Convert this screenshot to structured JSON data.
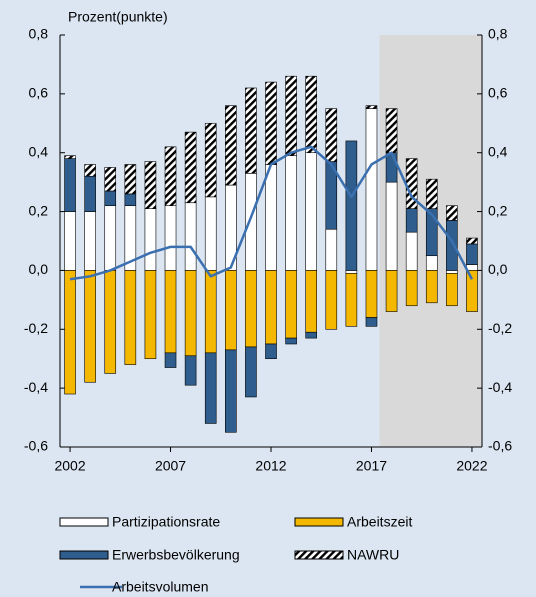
{
  "chart_data": {
    "type": "stacked-bar-line",
    "y_axis_label": "Prozent(punkte)",
    "categories": [
      2002,
      null,
      null,
      null,
      null,
      2007,
      null,
      null,
      null,
      null,
      2012,
      null,
      null,
      null,
      null,
      2017,
      null,
      null,
      null,
      null,
      2022
    ],
    "series": [
      {
        "name": "Partizipationsrate",
        "color": "#ffffff",
        "values": [
          0.2,
          0.2,
          0.22,
          0.22,
          0.21,
          0.22,
          0.23,
          0.25,
          0.29,
          0.33,
          0.36,
          0.39,
          0.4,
          0.14,
          -0.01,
          0.55,
          0.3,
          0.13,
          0.05,
          -0.01,
          0.02
        ]
      },
      {
        "name": "Arbeitszeit",
        "color": "#f5b800",
        "values": [
          -0.42,
          -0.38,
          -0.35,
          -0.32,
          -0.3,
          -0.28,
          -0.29,
          -0.28,
          -0.27,
          -0.26,
          -0.25,
          -0.23,
          -0.21,
          -0.2,
          -0.18,
          -0.16,
          -0.14,
          -0.12,
          -0.11,
          -0.11,
          -0.14
        ]
      },
      {
        "name": "Erwerbsbevölkerung",
        "color": "#2e5d8e",
        "values": [
          0.18,
          0.12,
          0.05,
          0.04,
          0.0,
          -0.05,
          -0.1,
          -0.24,
          -0.28,
          -0.17,
          -0.05,
          -0.02,
          -0.02,
          0.23,
          0.44,
          -0.03,
          0.1,
          0.08,
          0.16,
          0.17,
          0.07
        ]
      },
      {
        "name": "NAWRU",
        "color": "#000000",
        "pattern": "hatch",
        "values": [
          0.01,
          0.04,
          0.08,
          0.1,
          0.16,
          0.2,
          0.24,
          0.25,
          0.27,
          0.29,
          0.28,
          0.27,
          0.26,
          0.18,
          0.0,
          0.01,
          0.15,
          0.17,
          0.1,
          0.05,
          0.02
        ]
      },
      {
        "name": "Arbeitsvolumen",
        "type": "line",
        "color": "#3a6fb0",
        "values": [
          -0.03,
          -0.02,
          0.0,
          0.03,
          0.06,
          0.08,
          0.08,
          -0.02,
          0.01,
          0.18,
          0.36,
          0.4,
          0.42,
          0.36,
          0.25,
          0.36,
          0.4,
          0.25,
          0.19,
          0.1,
          -0.03
        ]
      }
    ],
    "shade_start_index": 16,
    "ylim": [
      -0.6,
      0.8
    ],
    "yticks": [
      {
        "value": -0.6,
        "label": "-0,6"
      },
      {
        "value": -0.4,
        "label": "-0,4"
      },
      {
        "value": -0.2,
        "label": "-0,2"
      },
      {
        "value": 0,
        "label": "0,0"
      },
      {
        "value": 0.2,
        "label": "0,2"
      },
      {
        "value": 0.4,
        "label": "0,4"
      },
      {
        "value": 0.6,
        "label": "0,6"
      },
      {
        "value": 0.8,
        "label": "0,8"
      }
    ],
    "y2lim": [
      -0.6,
      0.8
    ],
    "y2ticks": [
      {
        "value": -0.6,
        "label": "-0,6"
      },
      {
        "value": -0.4,
        "label": "-0,4"
      },
      {
        "value": -0.2,
        "label": "-0,2"
      },
      {
        "value": 0,
        "label": "0,0"
      },
      {
        "value": 0.2,
        "label": "0,2"
      },
      {
        "value": 0.4,
        "label": "0,4"
      },
      {
        "value": 0.6,
        "label": "0,6"
      },
      {
        "value": 0.8,
        "label": "0,8"
      }
    ],
    "grid": false
  }
}
